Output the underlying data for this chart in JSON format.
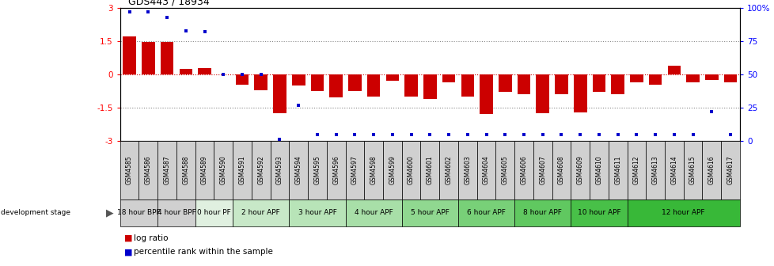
{
  "title": "GDS443 / 18934",
  "samples": [
    "GSM4585",
    "GSM4586",
    "GSM4587",
    "GSM4588",
    "GSM4589",
    "GSM4590",
    "GSM4591",
    "GSM4592",
    "GSM4593",
    "GSM4594",
    "GSM4595",
    "GSM4596",
    "GSM4597",
    "GSM4598",
    "GSM4599",
    "GSM4600",
    "GSM4601",
    "GSM4602",
    "GSM4603",
    "GSM4604",
    "GSM4605",
    "GSM4606",
    "GSM4607",
    "GSM4608",
    "GSM4609",
    "GSM4610",
    "GSM4611",
    "GSM4612",
    "GSM4613",
    "GSM4614",
    "GSM4615",
    "GSM4616",
    "GSM4617"
  ],
  "log_ratios": [
    1.7,
    1.45,
    1.45,
    0.25,
    0.28,
    0.0,
    -0.45,
    -0.7,
    -1.75,
    -0.5,
    -0.75,
    -1.05,
    -0.75,
    -1.0,
    -0.3,
    -1.0,
    -1.1,
    -0.35,
    -1.0,
    -1.8,
    -0.8,
    -0.9,
    -1.75,
    -0.9,
    -1.7,
    -0.8,
    -0.9,
    -0.35,
    -0.45,
    0.4,
    -0.35,
    -0.25,
    -0.35
  ],
  "percentile_ranks": [
    97,
    97,
    93,
    83,
    82,
    50,
    50,
    50,
    1,
    27,
    5,
    5,
    5,
    5,
    5,
    5,
    5,
    5,
    5,
    5,
    5,
    5,
    5,
    5,
    5,
    5,
    5,
    5,
    5,
    5,
    5,
    22,
    5
  ],
  "stage_groups": [
    {
      "label": "18 hour BPF",
      "start": 0,
      "end": 2,
      "color": "#d0d0d0"
    },
    {
      "label": "4 hour BPF",
      "start": 2,
      "end": 4,
      "color": "#d0d0d0"
    },
    {
      "label": "0 hour PF",
      "start": 4,
      "end": 6,
      "color": "#e0f0e0"
    },
    {
      "label": "2 hour APF",
      "start": 6,
      "end": 9,
      "color": "#c8e8c8"
    },
    {
      "label": "3 hour APF",
      "start": 9,
      "end": 12,
      "color": "#b8e4b8"
    },
    {
      "label": "4 hour APF",
      "start": 12,
      "end": 15,
      "color": "#a8dfa8"
    },
    {
      "label": "5 hour APF",
      "start": 15,
      "end": 18,
      "color": "#90d890"
    },
    {
      "label": "6 hour APF",
      "start": 18,
      "end": 21,
      "color": "#78d078"
    },
    {
      "label": "8 hour APF",
      "start": 21,
      "end": 24,
      "color": "#60c860"
    },
    {
      "label": "10 hour APF",
      "start": 24,
      "end": 27,
      "color": "#48c048"
    },
    {
      "label": "12 hour APF",
      "start": 27,
      "end": 33,
      "color": "#38b838"
    }
  ],
  "ylim": [
    -3,
    3
  ],
  "bar_color": "#cc0000",
  "dot_color": "#0000cc",
  "bg_color": "#ffffff",
  "hline_color": "#cc0000",
  "dotted_color": "#555555"
}
